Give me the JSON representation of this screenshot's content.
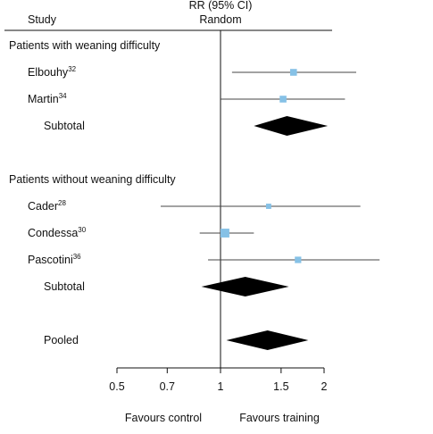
{
  "chart_data": {
    "type": "forest",
    "header": {
      "study_col": "Study",
      "measure": "RR (95% CI)",
      "model": "Random"
    },
    "x_axis": {
      "scale": "log",
      "ticks": [
        {
          "value": 0.5,
          "label": "0.5"
        },
        {
          "value": 0.7,
          "label": "0.7"
        },
        {
          "value": 1,
          "label": "1"
        },
        {
          "value": 1.5,
          "label": "1.5"
        },
        {
          "value": 2,
          "label": "2"
        }
      ],
      "xlim": [
        0.5,
        2
      ],
      "left_label": "Favours control",
      "right_label": "Favours training"
    },
    "rows": [
      {
        "kind": "group",
        "label": "Patients with weaning difficulty"
      },
      {
        "kind": "study",
        "label": "Elbouhy",
        "ref": "32",
        "estimate": 1.63,
        "lower": 1.08,
        "upper": 2.48,
        "weight": 1
      },
      {
        "kind": "study",
        "label": "Martin",
        "ref": "34",
        "estimate": 1.52,
        "lower": 1.0,
        "upper": 2.3,
        "weight": 1
      },
      {
        "kind": "subtotal",
        "label": "Subtotal",
        "estimate": 1.56,
        "lower": 1.25,
        "upper": 2.05
      },
      {
        "kind": "spacer"
      },
      {
        "kind": "group",
        "label": "Patients without weaning difficulty"
      },
      {
        "kind": "study",
        "label": "Cader",
        "ref": "28",
        "estimate": 1.38,
        "lower": 0.67,
        "upper": 2.55,
        "weight": 0.6
      },
      {
        "kind": "study",
        "label": "Condessa",
        "ref": "30",
        "estimate": 1.03,
        "lower": 0.87,
        "upper": 1.25,
        "weight": 1.7
      },
      {
        "kind": "study",
        "label": "Pascotini",
        "ref": "36",
        "estimate": 1.68,
        "lower": 0.92,
        "upper": 2.9,
        "weight": 0.9
      },
      {
        "kind": "subtotal",
        "label": "Subtotal",
        "estimate": 1.18,
        "lower": 0.88,
        "upper": 1.58
      },
      {
        "kind": "spacer"
      },
      {
        "kind": "pooled",
        "label": "Pooled",
        "estimate": 1.37,
        "lower": 1.04,
        "upper": 1.8
      }
    ],
    "colors": {
      "box": "#86c1e6",
      "diamond": "#000000",
      "line": "#444444"
    }
  }
}
